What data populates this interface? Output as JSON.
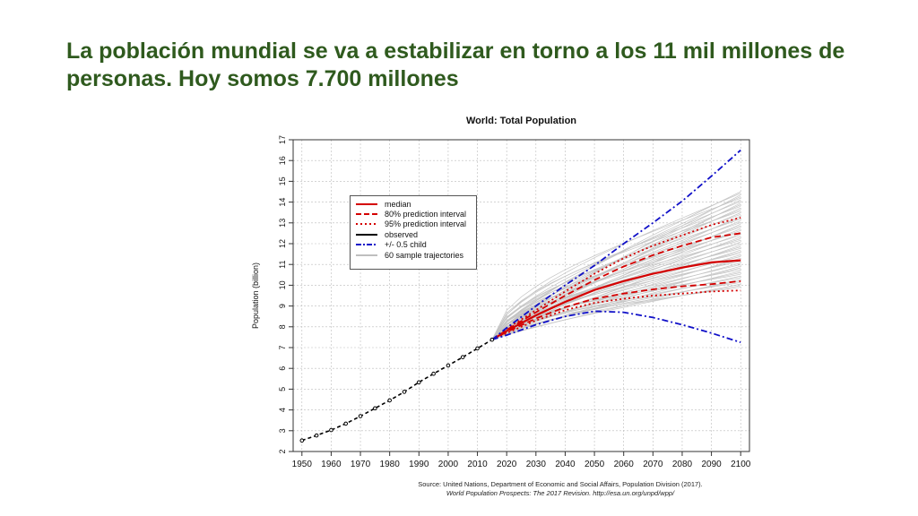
{
  "slide": {
    "title": "La población mundial se va a estabilizar en torno a los 11 mil millones de personas. Hoy somos 7.700 millones"
  },
  "chart_data": {
    "type": "line",
    "title": "World: Total Population",
    "xlabel": "",
    "ylabel": "Population (billion)",
    "xlim": [
      1947,
      2103
    ],
    "ylim": [
      2,
      17
    ],
    "xticks": [
      1950,
      1960,
      1970,
      1980,
      1990,
      2000,
      2010,
      2020,
      2030,
      2040,
      2050,
      2060,
      2070,
      2080,
      2090,
      2100
    ],
    "yticks": [
      2,
      3,
      4,
      5,
      6,
      7,
      8,
      9,
      10,
      11,
      12,
      13,
      14,
      15,
      16,
      17
    ],
    "grid": true,
    "legend_position": "top-left",
    "legend": [
      {
        "label": "median",
        "style": "solid",
        "color": "#d40000"
      },
      {
        "label": "80% prediction interval",
        "style": "dashed",
        "color": "#d40000"
      },
      {
        "label": "95% prediction interval",
        "style": "dotted",
        "color": "#d40000"
      },
      {
        "label": "observed",
        "style": "solid",
        "color": "#000000"
      },
      {
        "label": "+/- 0.5 child",
        "style": "dashdot",
        "color": "#1010c8"
      },
      {
        "label": "60 sample trajectories",
        "style": "solid",
        "color": "#aaaaaa"
      }
    ],
    "series": [
      {
        "name": "observed",
        "x": [
          1950,
          1955,
          1960,
          1965,
          1970,
          1975,
          1980,
          1985,
          1990,
          1995,
          2000,
          2005,
          2010,
          2015
        ],
        "values": [
          2.53,
          2.77,
          3.03,
          3.34,
          3.7,
          4.08,
          4.46,
          4.87,
          5.33,
          5.74,
          6.14,
          6.54,
          6.96,
          7.38
        ]
      },
      {
        "name": "median",
        "x": [
          2015,
          2020,
          2030,
          2040,
          2050,
          2060,
          2070,
          2080,
          2090,
          2100
        ],
        "values": [
          7.38,
          7.8,
          8.55,
          9.2,
          9.77,
          10.2,
          10.55,
          10.85,
          11.1,
          11.2
        ]
      },
      {
        "name": "80% upper",
        "x": [
          2015,
          2020,
          2030,
          2040,
          2050,
          2060,
          2070,
          2080,
          2090,
          2100
        ],
        "values": [
          7.38,
          7.85,
          8.7,
          9.5,
          10.25,
          10.9,
          11.45,
          11.9,
          12.3,
          12.5
        ]
      },
      {
        "name": "80% lower",
        "x": [
          2015,
          2020,
          2030,
          2040,
          2050,
          2060,
          2070,
          2080,
          2090,
          2100
        ],
        "values": [
          7.38,
          7.75,
          8.4,
          8.95,
          9.35,
          9.6,
          9.8,
          9.95,
          10.05,
          10.2
        ]
      },
      {
        "name": "95% upper",
        "x": [
          2015,
          2020,
          2030,
          2040,
          2050,
          2060,
          2070,
          2080,
          2090,
          2100
        ],
        "values": [
          7.38,
          7.9,
          8.8,
          9.7,
          10.55,
          11.3,
          11.9,
          12.4,
          12.9,
          13.25
        ]
      },
      {
        "name": "95% lower",
        "x": [
          2015,
          2020,
          2030,
          2040,
          2050,
          2060,
          2070,
          2080,
          2090,
          2100
        ],
        "values": [
          7.38,
          7.7,
          8.3,
          8.8,
          9.15,
          9.35,
          9.5,
          9.6,
          9.7,
          9.75
        ]
      },
      {
        "name": "+0.5 child",
        "x": [
          2015,
          2020,
          2030,
          2040,
          2050,
          2060,
          2070,
          2080,
          2090,
          2100
        ],
        "values": [
          7.38,
          7.95,
          9.0,
          10.0,
          10.95,
          12.0,
          13.0,
          14.05,
          15.25,
          16.5
        ]
      },
      {
        "name": "-0.5 child",
        "x": [
          2015,
          2020,
          2030,
          2040,
          2050,
          2060,
          2070,
          2080,
          2090,
          2100
        ],
        "values": [
          7.38,
          7.6,
          8.1,
          8.5,
          8.75,
          8.7,
          8.45,
          8.1,
          7.7,
          7.25
        ]
      }
    ],
    "sample_trajectories": {
      "count": 60,
      "x_start": 2015,
      "x_end": 2100,
      "start_value": 7.38,
      "end_range": [
        9.9,
        14.5
      ]
    },
    "source_line1": "Source: United Nations, Department of Economic and Social Affairs, Population Division (2017).",
    "source_line2": "World Population Prospects: The 2017 Revision. http://esa.un.org/unpd/wpp/"
  }
}
